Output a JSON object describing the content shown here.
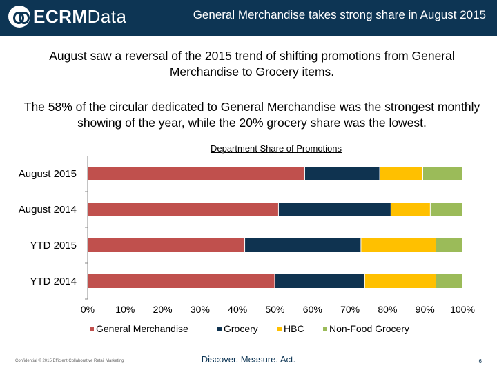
{
  "header": {
    "logo_text_1": "ECRM",
    "logo_text_2": "Data",
    "title": "General Merchandise takes strong share in August 2015"
  },
  "body": {
    "paragraph_1": "August saw a reversal of the 2015 trend of shifting promotions from General Merchandise to Grocery items.",
    "paragraph_2": "The 58% of the circular dedicated to General Merchandise was the strongest monthly showing of the year, while the 20% grocery share was the lowest."
  },
  "chart_data": {
    "type": "bar",
    "orientation": "horizontal",
    "stacked": true,
    "title": "Department Share of Promotions",
    "categories": [
      "August 2015",
      "August 2014",
      "YTD 2015",
      "YTD 2014"
    ],
    "series": [
      {
        "name": "General Merchandise",
        "color": "#c0504d",
        "values": [
          58,
          51,
          42,
          50
        ]
      },
      {
        "name": "Grocery",
        "color": "#0f3350",
        "values": [
          20,
          30,
          31,
          24
        ]
      },
      {
        "name": "HBC",
        "color": "#ffc000",
        "values": [
          11.5,
          10.5,
          20,
          19
        ]
      },
      {
        "name": "Non-Food Grocery",
        "color": "#9bbb59",
        "values": [
          10.5,
          8.5,
          7,
          7
        ]
      }
    ],
    "xlim": [
      0,
      100
    ],
    "xticks": [
      "0%",
      "10%",
      "20%",
      "30%",
      "40%",
      "50%",
      "60%",
      "70%",
      "80%",
      "90%",
      "100%"
    ],
    "legend_position": "bottom",
    "grid": false
  },
  "footer": {
    "left": "Confidential © 2015 Efficient Collaborative Retail Marketing",
    "middle": "Discover. Measure. Act.",
    "page": "6"
  }
}
